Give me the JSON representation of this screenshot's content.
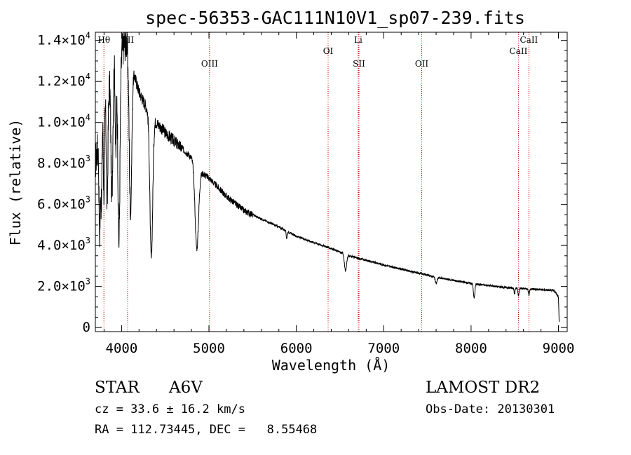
{
  "chart_data": {
    "type": "line",
    "title": "spec-56353-GAC111N10V1_sp07-239.fits",
    "xlabel": "Wavelength (Å)",
    "ylabel": "Flux (relative)",
    "xlim": [
      3700,
      9100
    ],
    "ylim": [
      -200,
      14400
    ],
    "x_ticks": [
      4000,
      5000,
      6000,
      7000,
      8000,
      9000
    ],
    "x_tick_labels": [
      "4000",
      "5000",
      "6000",
      "7000",
      "8000",
      "9000"
    ],
    "y_ticks": [
      0,
      2000,
      4000,
      6000,
      8000,
      10000,
      12000,
      14000
    ],
    "y_tick_labels": [
      {
        "mant": "0",
        "exp": ""
      },
      {
        "mant": "2.0×10",
        "exp": "3"
      },
      {
        "mant": "4.0×10",
        "exp": "3"
      },
      {
        "mant": "6.0×10",
        "exp": "3"
      },
      {
        "mant": "8.0×10",
        "exp": "3"
      },
      {
        "mant": "1.0×10",
        "exp": "4"
      },
      {
        "mant": "1.2×10",
        "exp": "4"
      },
      {
        "mant": "1.4×10",
        "exp": "4"
      }
    ],
    "spectrum_color": "#000000",
    "line_marker_color": "#cc0000",
    "spectral_lines": [
      {
        "label": "Hθ",
        "wavelength": 3798,
        "label_level": "high"
      },
      {
        "label": "KII",
        "wavelength": 4069,
        "label_level": "high"
      },
      {
        "label": "OIII",
        "wavelength": 5007,
        "label_level": "low"
      },
      {
        "label": "OI",
        "wavelength": 6364,
        "label_level": "mid"
      },
      {
        "label": "Li",
        "wavelength": 6708,
        "label_level": "high"
      },
      {
        "label": "SII",
        "wavelength": 6717,
        "label_level": "low"
      },
      {
        "label": "OII",
        "wavelength": 7435,
        "label_level": "low"
      },
      {
        "label": "CaII",
        "wavelength": 8542,
        "label_level": "mid"
      },
      {
        "label": "CaII",
        "wavelength": 8662,
        "label_level": "high"
      }
    ],
    "continuum": [
      [
        3700,
        8000
      ],
      [
        3800,
        11000
      ],
      [
        3900,
        12500
      ],
      [
        4000,
        13500
      ],
      [
        4050,
        14000
      ],
      [
        4100,
        13000
      ],
      [
        4200,
        11500
      ],
      [
        4300,
        10600
      ],
      [
        4400,
        10000
      ],
      [
        4500,
        9500
      ],
      [
        4600,
        9100
      ],
      [
        4700,
        8700
      ],
      [
        4800,
        8300
      ],
      [
        4900,
        7600
      ],
      [
        5000,
        7300
      ],
      [
        5200,
        6400
      ],
      [
        5400,
        5700
      ],
      [
        5600,
        5300
      ],
      [
        5800,
        4900
      ],
      [
        6000,
        4450
      ],
      [
        6200,
        4150
      ],
      [
        6400,
        3850
      ],
      [
        6600,
        3500
      ],
      [
        6800,
        3280
      ],
      [
        7000,
        3050
      ],
      [
        7200,
        2850
      ],
      [
        7400,
        2650
      ],
      [
        7600,
        2450
      ],
      [
        7800,
        2300
      ],
      [
        8000,
        2150
      ],
      [
        8200,
        2050
      ],
      [
        8400,
        1950
      ],
      [
        8600,
        1900
      ],
      [
        8800,
        1850
      ],
      [
        8950,
        1800
      ],
      [
        9000,
        1500
      ],
      [
        9010,
        0
      ]
    ],
    "absorption_features": [
      {
        "center": 3750,
        "width": 8,
        "depth": 5000
      },
      {
        "center": 3770,
        "width": 6,
        "depth": 4000
      },
      {
        "center": 3798,
        "width": 7,
        "depth": 4200
      },
      {
        "center": 3835,
        "width": 9,
        "depth": 5500
      },
      {
        "center": 3889,
        "width": 10,
        "depth": 6000
      },
      {
        "center": 3934,
        "width": 6,
        "depth": 4500
      },
      {
        "center": 3970,
        "width": 12,
        "depth": 9000
      },
      {
        "center": 4102,
        "width": 14,
        "depth": 7500
      },
      {
        "center": 4340,
        "width": 16,
        "depth": 7000
      },
      {
        "center": 4861,
        "width": 20,
        "depth": 4000
      },
      {
        "center": 5890,
        "width": 6,
        "depth": 350
      },
      {
        "center": 6563,
        "width": 12,
        "depth": 800
      },
      {
        "center": 7600,
        "width": 10,
        "depth": 300
      },
      {
        "center": 8035,
        "width": 8,
        "depth": 700
      },
      {
        "center": 8498,
        "width": 6,
        "depth": 250
      },
      {
        "center": 8542,
        "width": 6,
        "depth": 400
      },
      {
        "center": 8662,
        "width": 6,
        "depth": 300
      }
    ]
  },
  "info": {
    "object_class": "STAR",
    "subclass": "A6V",
    "survey": "LAMOST DR2",
    "cz": "cz = 33.6 ± 16.2 km/s",
    "obs_date": "Obs-Date: 20130301",
    "coords": "RA = 112.73445, DEC =   8.55468"
  }
}
